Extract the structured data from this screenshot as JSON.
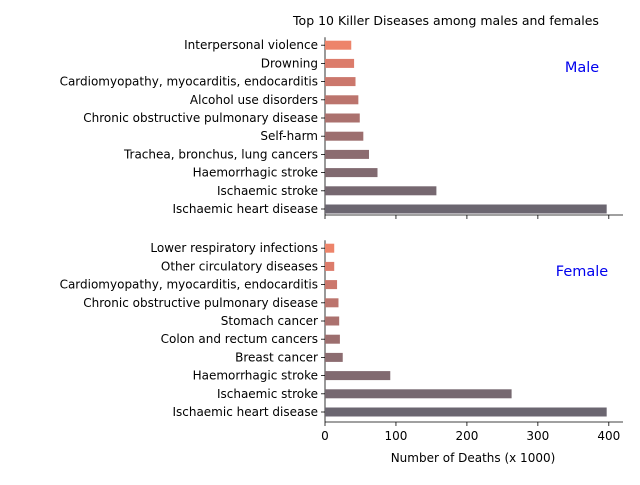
{
  "chart_data": {
    "type": "bar",
    "orientation": "horizontal",
    "title": "Top 10 Killer Diseases among males and females",
    "xlabel": "Number of Deaths (x 1000)",
    "xlim": [
      0,
      420
    ],
    "xticks": [
      0,
      100,
      200,
      300,
      400
    ],
    "grid": false,
    "colors": [
      "#6b6670",
      "#766870",
      "#816a70",
      "#8c6c70",
      "#9c6e6e",
      "#ab716e",
      "#bb746d",
      "#cb776c",
      "#dc7c6b",
      "#ed846a"
    ],
    "panel_label_color": "#0000ee",
    "panels": [
      {
        "label": "Male",
        "categories": [
          "Ischaemic heart disease",
          "Ischaemic stroke",
          "Haemorrhagic stroke",
          "Trachea, bronchus, lung cancers",
          "Self-harm",
          "Chronic obstructive pulmonary disease",
          "Alcohol use disorders",
          "Cardiomyopathy, myocarditis, endocarditis",
          "Drowning",
          "Interpersonal violence"
        ],
        "values": [
          397,
          157,
          74,
          62,
          54,
          49,
          47,
          43,
          41,
          37
        ]
      },
      {
        "label": "Female",
        "categories": [
          "Ischaemic heart disease",
          "Ischaemic stroke",
          "Haemorrhagic stroke",
          "Breast cancer",
          "Colon and rectum cancers",
          "Stomach cancer",
          "Chronic obstructive pulmonary disease",
          "Cardiomyopathy, myocarditis, endocarditis",
          "Other circulatory diseases",
          "Lower respiratory infections"
        ],
        "values": [
          397,
          263,
          92,
          25,
          21,
          20,
          19,
          17,
          13,
          13
        ]
      }
    ]
  }
}
